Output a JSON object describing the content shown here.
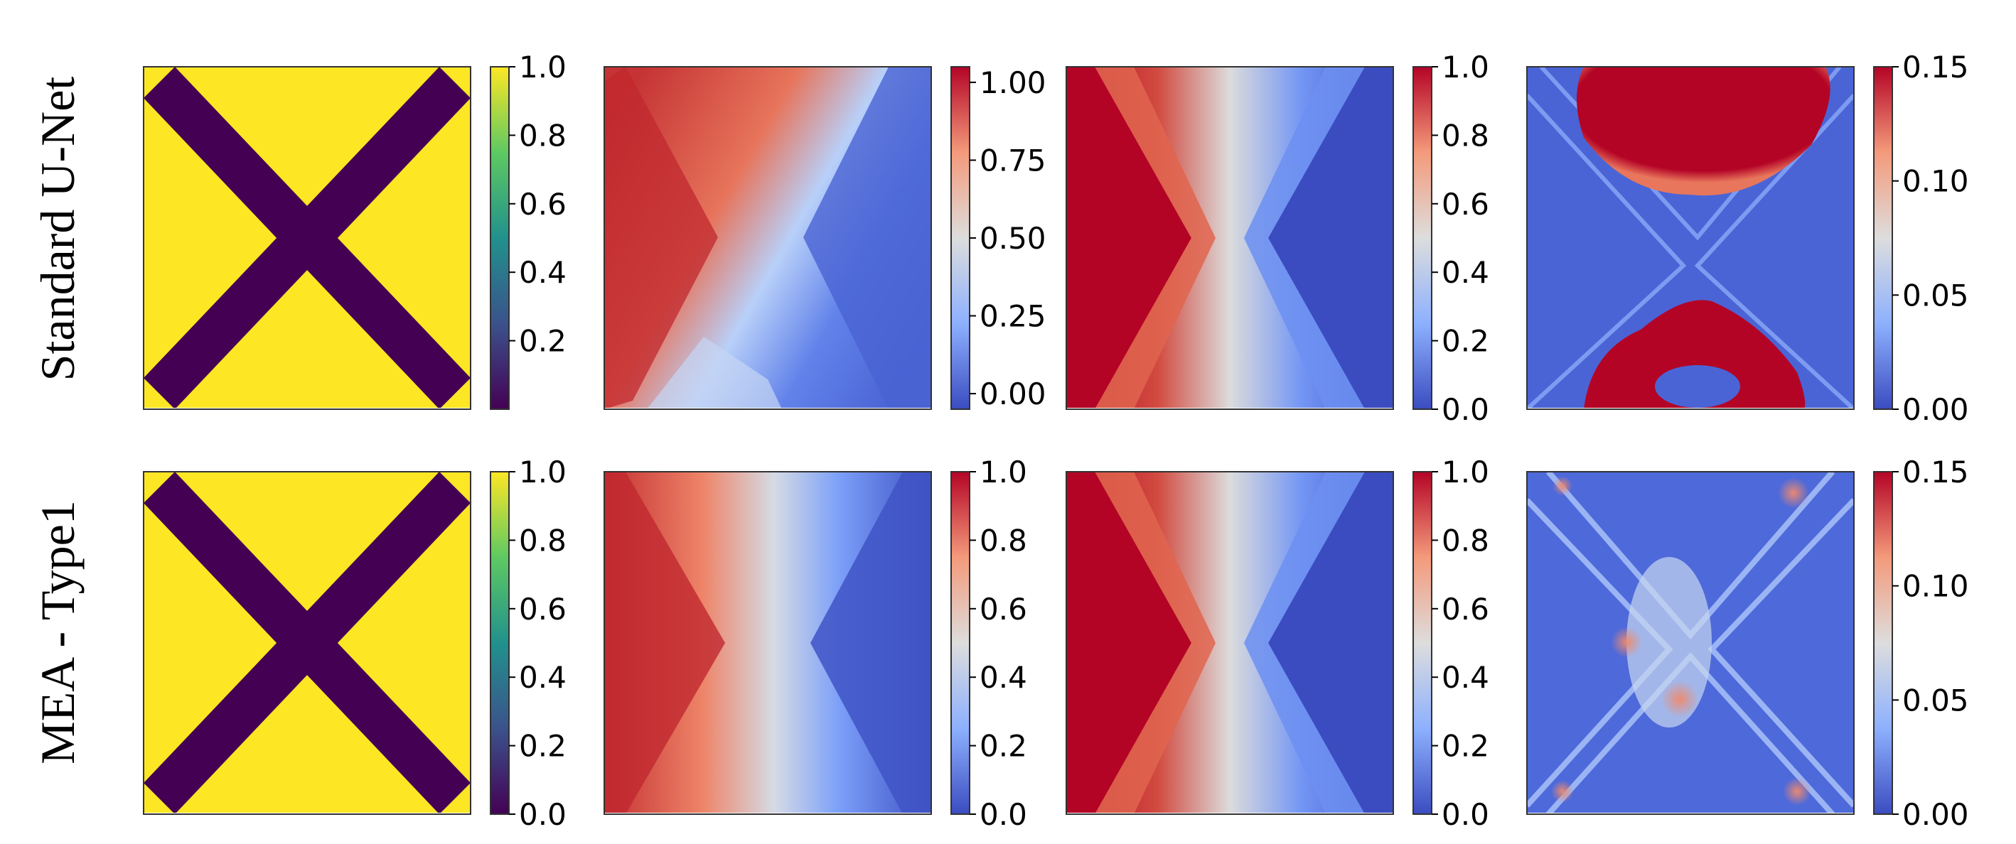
{
  "chart_data": {
    "type": "heatmap",
    "rows": [
      {
        "label": "Standard U-Net",
        "panels": [
          {
            "content": "x-mask",
            "cmap": "viridis",
            "clim": [
              0.0,
              1.0
            ],
            "colorbar_ticks": [
              "1.0",
              "0.8",
              "0.6",
              "0.4",
              "0.2"
            ],
            "tick_values": [
              1.0,
              0.8,
              0.6,
              0.4,
              0.2
            ]
          },
          {
            "content": "prediction",
            "cmap": "coolwarm",
            "clim": [
              -0.05,
              1.05
            ],
            "colorbar_ticks": [
              "1.00",
              "0.75",
              "0.50",
              "0.25",
              "0.00"
            ],
            "tick_values": [
              1.0,
              0.75,
              0.5,
              0.25,
              0.0
            ]
          },
          {
            "content": "ground-truth",
            "cmap": "coolwarm",
            "clim": [
              0.0,
              1.0
            ],
            "colorbar_ticks": [
              "1.0",
              "0.8",
              "0.6",
              "0.4",
              "0.2",
              "0.0"
            ],
            "tick_values": [
              1.0,
              0.8,
              0.6,
              0.4,
              0.2,
              0.0
            ]
          },
          {
            "content": "error",
            "cmap": "coolwarm",
            "clim": [
              0.0,
              0.15
            ],
            "colorbar_ticks": [
              "0.15",
              "0.10",
              "0.05",
              "0.00"
            ],
            "tick_values": [
              0.15,
              0.1,
              0.05,
              0.0
            ]
          }
        ]
      },
      {
        "label": "MEA - Type1",
        "panels": [
          {
            "content": "x-mask",
            "cmap": "viridis",
            "clim": [
              0.0,
              1.0
            ],
            "colorbar_ticks": [
              "1.0",
              "0.8",
              "0.6",
              "0.4",
              "0.2",
              "0.0"
            ],
            "tick_values": [
              1.0,
              0.8,
              0.6,
              0.4,
              0.2,
              0.0
            ]
          },
          {
            "content": "prediction",
            "cmap": "coolwarm",
            "clim": [
              0.0,
              1.0
            ],
            "colorbar_ticks": [
              "1.0",
              "0.8",
              "0.6",
              "0.4",
              "0.2",
              "0.0"
            ],
            "tick_values": [
              1.0,
              0.8,
              0.6,
              0.4,
              0.2,
              0.0
            ]
          },
          {
            "content": "ground-truth",
            "cmap": "coolwarm",
            "clim": [
              0.0,
              1.0
            ],
            "colorbar_ticks": [
              "1.0",
              "0.8",
              "0.6",
              "0.4",
              "0.2",
              "0.0"
            ],
            "tick_values": [
              1.0,
              0.8,
              0.6,
              0.4,
              0.2,
              0.0
            ]
          },
          {
            "content": "error",
            "cmap": "coolwarm",
            "clim": [
              0.0,
              0.15
            ],
            "colorbar_ticks": [
              "0.15",
              "0.10",
              "0.05",
              "0.00"
            ],
            "tick_values": [
              0.15,
              0.1,
              0.05,
              0.0
            ]
          }
        ]
      }
    ],
    "colors": {
      "mask_background": "#fde725",
      "mask_cross": "#440154",
      "coolwarm_high": "#b40426",
      "coolwarm_mid": "#dddddd",
      "coolwarm_low": "#3b4cc0"
    }
  }
}
